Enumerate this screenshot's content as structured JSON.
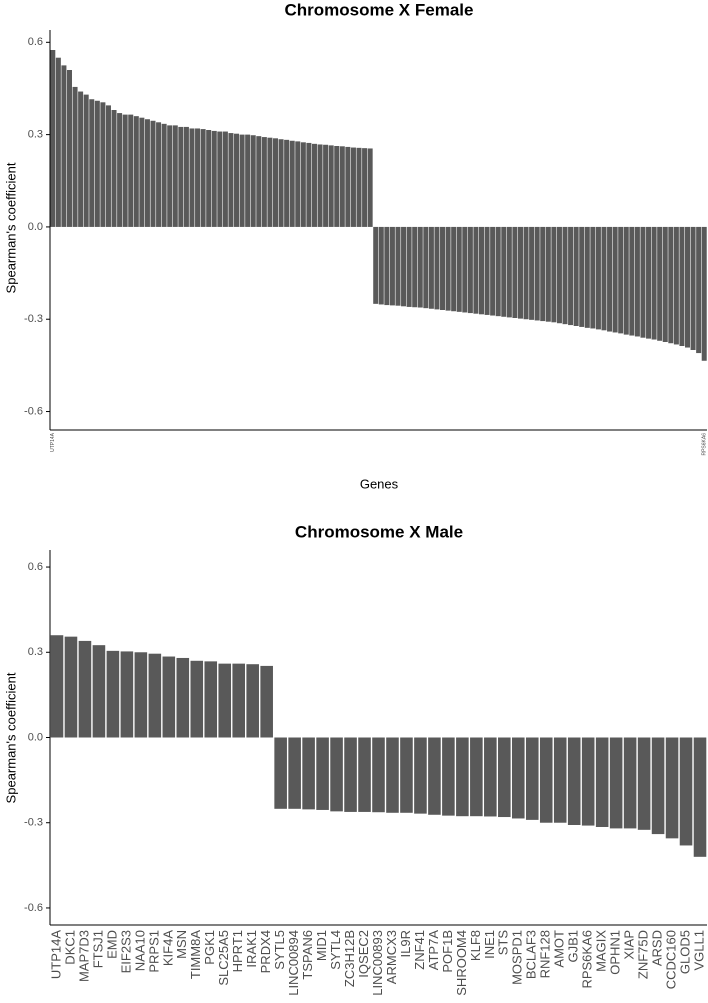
{
  "chart_data": [
    {
      "type": "bar",
      "title": "Chromosome X Female",
      "x_label": "Genes",
      "y_label": "Spearman's coefficient",
      "color": "#595959",
      "categories": [
        "UTP14A",
        null,
        null,
        null,
        null,
        null,
        null,
        null,
        null,
        null,
        null,
        null,
        null,
        null,
        null,
        null,
        null,
        null,
        null,
        null,
        null,
        null,
        null,
        null,
        null,
        null,
        null,
        null,
        null,
        null,
        null,
        null,
        null,
        null,
        null,
        null,
        null,
        null,
        null,
        null,
        null,
        null,
        null,
        null,
        null,
        null,
        null,
        null,
        null,
        null,
        null,
        null,
        null,
        null,
        null,
        null,
        null,
        null,
        null,
        null,
        null,
        null,
        null,
        null,
        null,
        null,
        null,
        null,
        null,
        null,
        null,
        null,
        null,
        null,
        null,
        null,
        null,
        null,
        null,
        null,
        null,
        null,
        null,
        null,
        null,
        null,
        null,
        null,
        null,
        null,
        null,
        null,
        null,
        null,
        null,
        null,
        null,
        null,
        null,
        null,
        null,
        null,
        null,
        null,
        null,
        null,
        null,
        null,
        null,
        null,
        null,
        null,
        null,
        null,
        null,
        null,
        null,
        "RPS6KA6"
      ],
      "values": [
        0.575,
        0.55,
        0.525,
        0.51,
        0.455,
        0.44,
        0.43,
        0.415,
        0.41,
        0.405,
        0.395,
        0.38,
        0.37,
        0.365,
        0.365,
        0.36,
        0.355,
        0.35,
        0.345,
        0.34,
        0.335,
        0.33,
        0.33,
        0.325,
        0.325,
        0.32,
        0.32,
        0.318,
        0.315,
        0.312,
        0.31,
        0.31,
        0.305,
        0.303,
        0.3,
        0.3,
        0.298,
        0.295,
        0.292,
        0.29,
        0.288,
        0.285,
        0.283,
        0.28,
        0.278,
        0.275,
        0.273,
        0.27,
        0.268,
        0.267,
        0.265,
        0.263,
        0.262,
        0.26,
        0.258,
        0.257,
        0.256,
        0.255,
        -0.25,
        -0.252,
        -0.254,
        -0.255,
        -0.256,
        -0.258,
        -0.26,
        -0.261,
        -0.262,
        -0.264,
        -0.266,
        -0.268,
        -0.27,
        -0.272,
        -0.274,
        -0.276,
        -0.278,
        -0.28,
        -0.282,
        -0.284,
        -0.286,
        -0.288,
        -0.29,
        -0.292,
        -0.294,
        -0.296,
        -0.298,
        -0.3,
        -0.302,
        -0.304,
        -0.306,
        -0.308,
        -0.31,
        -0.313,
        -0.316,
        -0.319,
        -0.322,
        -0.325,
        -0.328,
        -0.33,
        -0.333,
        -0.336,
        -0.34,
        -0.343,
        -0.346,
        -0.35,
        -0.353,
        -0.356,
        -0.36,
        -0.363,
        -0.366,
        -0.37,
        -0.374,
        -0.378,
        -0.382,
        -0.387,
        -0.392,
        -0.4,
        -0.41,
        -0.435
      ],
      "ylim": [
        -0.66,
        0.64
      ],
      "yticks": [
        -0.6,
        -0.3,
        {
          "value": 0,
          "label": "0.0"
        },
        0.3,
        0.6
      ],
      "grid": false
    },
    {
      "type": "bar",
      "title": "Chromosome X Male",
      "y_label": "Spearman's coefficient",
      "color": "#595959",
      "categories": [
        "UTP14A",
        "DKC1",
        "MAP7D3",
        "FTSJ1",
        "EMD",
        "EIF2S3",
        "NAA10",
        "PRPS1",
        "KIF4A",
        "MSN",
        "TIMM8A",
        "PGK1",
        "SLC25A5",
        "HPRT1",
        "IRAK1",
        "PRDX4",
        "SYTL5",
        "LINC00894",
        "TSPAN6",
        "MID1",
        "SYTL4",
        "ZC3H12B",
        "IQSEC2",
        "LINC00893",
        "ARMCX3",
        "IL9R",
        "ZNF41",
        "ATP7A",
        "POF1B",
        "SHROOM4",
        "KLF8",
        "INE1",
        "STS",
        "MOSPD1",
        "BCLAF3",
        "RNF128",
        "AMOT",
        "GJB1",
        "RPS6KA6",
        "MAGIX",
        "OPHN1",
        "XIAP",
        "ZNF75D",
        "ARSD",
        "CCDC160",
        "GLOD5",
        "VGLL1"
      ],
      "values": [
        0.36,
        0.355,
        0.34,
        0.325,
        0.305,
        0.303,
        0.3,
        0.295,
        0.285,
        0.28,
        0.27,
        0.268,
        0.26,
        0.26,
        0.258,
        0.252,
        -0.251,
        -0.251,
        -0.253,
        -0.255,
        -0.26,
        -0.262,
        -0.262,
        -0.263,
        -0.265,
        -0.265,
        -0.268,
        -0.272,
        -0.275,
        -0.277,
        -0.277,
        -0.278,
        -0.28,
        -0.285,
        -0.29,
        -0.3,
        -0.3,
        -0.308,
        -0.31,
        -0.315,
        -0.32,
        -0.32,
        -0.325,
        -0.34,
        -0.355,
        -0.38,
        -0.42
      ],
      "ylim": [
        -0.66,
        0.66
      ],
      "yticks": [
        -0.6,
        -0.3,
        {
          "value": 0,
          "label": "0.0"
        },
        0.3,
        0.6
      ],
      "grid": false
    }
  ]
}
